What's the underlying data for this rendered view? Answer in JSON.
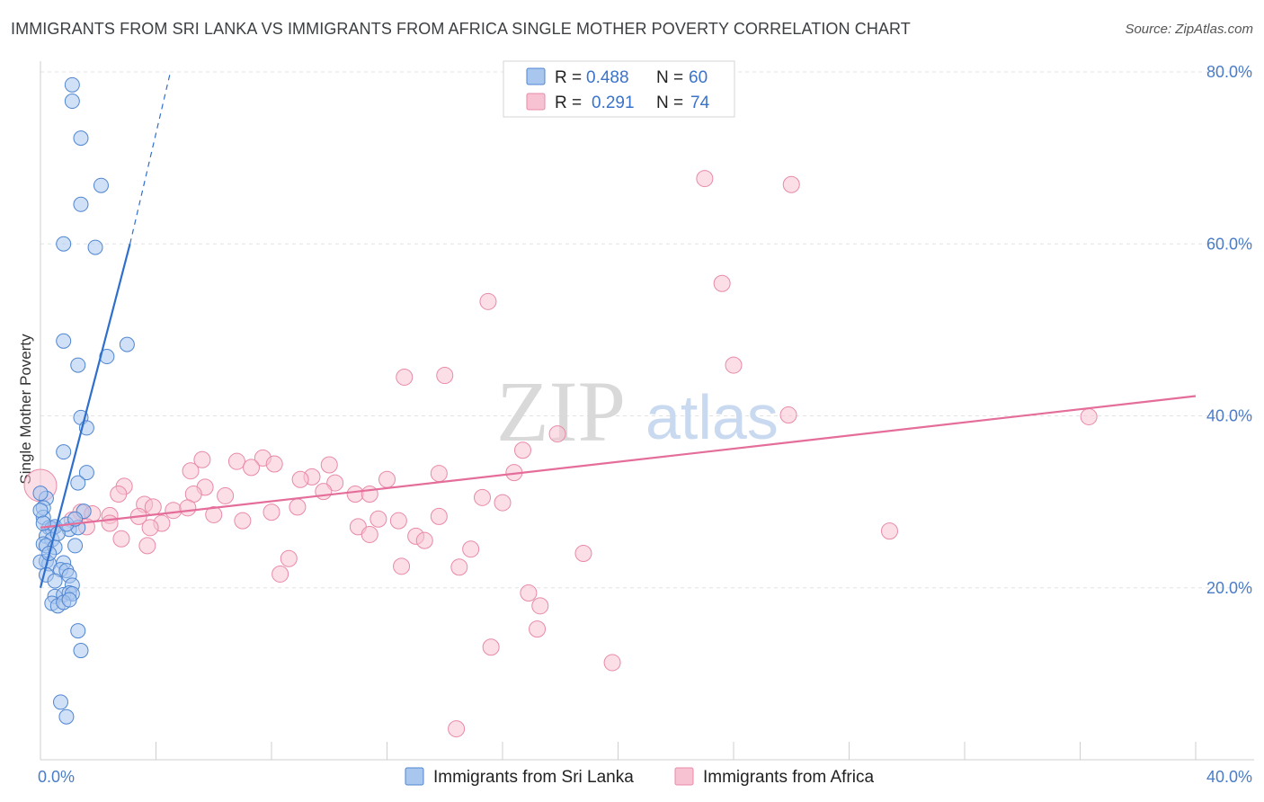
{
  "header": {
    "title": "IMMIGRANTS FROM SRI LANKA VS IMMIGRANTS FROM AFRICA SINGLE MOTHER POVERTY CORRELATION CHART",
    "source": "Source: ZipAtlas.com"
  },
  "watermark": {
    "zip": "ZIP",
    "atlas": "atlas"
  },
  "legend": {
    "r_label": "R =",
    "n_label": "N =",
    "series1": {
      "r": "0.488",
      "n": "60"
    },
    "series2": {
      "r": "0.291",
      "n": "74"
    }
  },
  "colors": {
    "blue_fill": "#a9c7ee",
    "blue_stroke": "#4f86d1",
    "blue_line": "#2f6fcc",
    "pink_fill": "#f7c2d2",
    "pink_stroke": "#e88aa8",
    "pink_line": "#e46d9a",
    "grid": "#e3e3e3"
  },
  "chart_data": {
    "type": "scatter",
    "title": "IMMIGRANTS FROM SRI LANKA VS IMMIGRANTS FROM AFRICA SINGLE MOTHER POVERTY CORRELATION CHART",
    "xlabel": "",
    "ylabel": "Single Mother Poverty",
    "xlim": [
      0,
      40
    ],
    "ylim": [
      0,
      80
    ],
    "x_tick_labels": [
      "0.0%",
      "40.0%"
    ],
    "y_ticks": [
      20,
      40,
      60,
      80
    ],
    "y_tick_labels": [
      "20.0%",
      "40.0%",
      "60.0%",
      "80.0%"
    ],
    "legend_position": "top-center",
    "series": [
      {
        "name": "Immigrants from Sri Lanka",
        "r": 0.488,
        "n": 60,
        "trend": {
          "x0": 0.0,
          "y0": 20.0,
          "x1": 3.1,
          "y1": 60.0,
          "dash_to_x": 4.5,
          "dash_to_y": 80.0
        },
        "points": [
          [
            1.1,
            78.5
          ],
          [
            1.1,
            76.6
          ],
          [
            1.4,
            72.3
          ],
          [
            2.1,
            66.8
          ],
          [
            1.4,
            64.6
          ],
          [
            0.8,
            60.0
          ],
          [
            1.9,
            59.6
          ],
          [
            3.0,
            48.3
          ],
          [
            0.8,
            48.7
          ],
          [
            2.3,
            46.9
          ],
          [
            1.3,
            45.9
          ],
          [
            1.4,
            39.8
          ],
          [
            1.6,
            38.6
          ],
          [
            0.8,
            35.8
          ],
          [
            1.6,
            33.4
          ],
          [
            1.3,
            32.2
          ],
          [
            0.2,
            30.4
          ],
          [
            0.1,
            29.3
          ],
          [
            0.1,
            28.2
          ],
          [
            1.5,
            28.9
          ],
          [
            0.3,
            27.0
          ],
          [
            0.4,
            26.9
          ],
          [
            0.5,
            27.1
          ],
          [
            1.0,
            26.8
          ],
          [
            1.3,
            27.0
          ],
          [
            0.2,
            26.0
          ],
          [
            0.4,
            25.6
          ],
          [
            0.1,
            25.1
          ],
          [
            0.2,
            24.9
          ],
          [
            0.5,
            24.7
          ],
          [
            1.2,
            24.9
          ],
          [
            0.2,
            23.1
          ],
          [
            0.3,
            22.8
          ],
          [
            0.8,
            22.9
          ],
          [
            0.7,
            22.1
          ],
          [
            0.9,
            22.0
          ],
          [
            1.0,
            21.4
          ],
          [
            1.1,
            20.3
          ],
          [
            0.5,
            19.0
          ],
          [
            0.8,
            19.2
          ],
          [
            1.0,
            19.4
          ],
          [
            1.1,
            19.3
          ],
          [
            0.4,
            18.2
          ],
          [
            0.6,
            17.9
          ],
          [
            0.8,
            18.3
          ],
          [
            1.3,
            15.0
          ],
          [
            1.4,
            12.7
          ],
          [
            0.7,
            6.7
          ],
          [
            0.9,
            5.0
          ],
          [
            0.0,
            31.0
          ],
          [
            0.0,
            29.0
          ],
          [
            0.0,
            23.0
          ],
          [
            0.1,
            27.5
          ],
          [
            0.3,
            24.0
          ],
          [
            0.6,
            26.3
          ],
          [
            0.9,
            27.4
          ],
          [
            1.2,
            28.0
          ],
          [
            0.2,
            21.5
          ],
          [
            0.5,
            20.8
          ],
          [
            1.0,
            18.6
          ]
        ]
      },
      {
        "name": "Immigrants from Africa",
        "r": 0.291,
        "n": 74,
        "trend": {
          "x0": 0.0,
          "y0": 27.0,
          "x1": 40.0,
          "y1": 42.3
        },
        "points": [
          [
            23.0,
            67.6
          ],
          [
            26.0,
            66.9
          ],
          [
            15.5,
            53.3
          ],
          [
            23.6,
            55.4
          ],
          [
            24.0,
            45.9
          ],
          [
            12.6,
            44.5
          ],
          [
            14.0,
            44.7
          ],
          [
            25.9,
            40.1
          ],
          [
            36.3,
            39.9
          ],
          [
            17.9,
            37.9
          ],
          [
            16.7,
            36.0
          ],
          [
            7.7,
            35.1
          ],
          [
            5.6,
            34.9
          ],
          [
            6.8,
            34.7
          ],
          [
            8.1,
            34.4
          ],
          [
            7.3,
            34.0
          ],
          [
            10.0,
            34.3
          ],
          [
            5.2,
            33.6
          ],
          [
            9.4,
            32.9
          ],
          [
            13.8,
            33.3
          ],
          [
            16.4,
            33.4
          ],
          [
            9.0,
            32.6
          ],
          [
            12.0,
            32.6
          ],
          [
            10.2,
            32.2
          ],
          [
            5.7,
            31.7
          ],
          [
            2.9,
            31.8
          ],
          [
            9.8,
            31.2
          ],
          [
            2.7,
            30.9
          ],
          [
            5.3,
            30.9
          ],
          [
            6.4,
            30.7
          ],
          [
            10.9,
            30.9
          ],
          [
            11.4,
            30.9
          ],
          [
            15.3,
            30.5
          ],
          [
            16.0,
            29.9
          ],
          [
            3.6,
            29.7
          ],
          [
            3.9,
            29.4
          ],
          [
            4.6,
            29.0
          ],
          [
            5.1,
            29.3
          ],
          [
            8.9,
            29.4
          ],
          [
            1.4,
            28.8
          ],
          [
            1.8,
            28.6
          ],
          [
            2.4,
            28.4
          ],
          [
            3.4,
            28.3
          ],
          [
            8.0,
            28.8
          ],
          [
            6.0,
            28.5
          ],
          [
            13.8,
            28.3
          ],
          [
            1.1,
            27.9
          ],
          [
            7.0,
            27.8
          ],
          [
            11.7,
            28.0
          ],
          [
            12.4,
            27.8
          ],
          [
            2.4,
            27.5
          ],
          [
            4.2,
            27.5
          ],
          [
            11.0,
            27.1
          ],
          [
            3.8,
            27.0
          ],
          [
            1.6,
            27.1
          ],
          [
            29.4,
            26.6
          ],
          [
            11.4,
            26.2
          ],
          [
            13.0,
            26.0
          ],
          [
            13.3,
            25.5
          ],
          [
            2.8,
            25.7
          ],
          [
            3.7,
            24.9
          ],
          [
            14.9,
            24.5
          ],
          [
            18.8,
            24.0
          ],
          [
            8.6,
            23.4
          ],
          [
            12.5,
            22.5
          ],
          [
            14.5,
            22.4
          ],
          [
            8.3,
            21.6
          ],
          [
            16.9,
            19.4
          ],
          [
            17.3,
            17.9
          ],
          [
            17.2,
            15.2
          ],
          [
            15.6,
            13.1
          ],
          [
            19.8,
            11.3
          ],
          [
            14.4,
            3.6
          ],
          [
            0.0,
            31.9
          ]
        ]
      }
    ]
  },
  "bottom_legend": [
    {
      "label": "Immigrants from Sri Lanka"
    },
    {
      "label": "Immigrants from Africa"
    }
  ]
}
